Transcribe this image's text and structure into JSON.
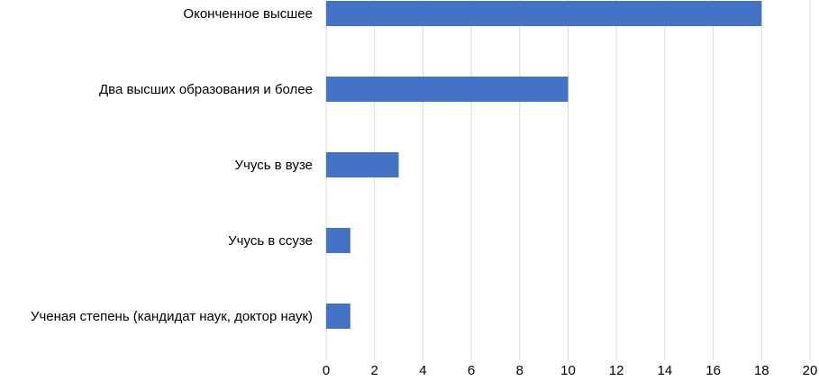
{
  "chart_data": {
    "type": "bar",
    "orientation": "horizontal",
    "categories": [
      "Оконченное высшее",
      "Два высших образования и более",
      "Учусь в вузе",
      "Учусь в ссузе",
      "Ученая степень (кандидат наук, доктор наук)"
    ],
    "values": [
      18,
      10,
      3,
      1,
      1
    ],
    "title": "",
    "xlabel": "",
    "ylabel": "",
    "xlim": [
      0,
      20
    ],
    "xticks": [
      0,
      2,
      4,
      6,
      8,
      10,
      12,
      14,
      16,
      18,
      20
    ],
    "xtick_labels": [
      "0",
      "2",
      "4",
      "6",
      "8",
      "10",
      "12",
      "14",
      "16",
      "18",
      "20"
    ],
    "grid": "vertical",
    "legend": "none",
    "bar_color": "#4472C4",
    "grid_color": "#D9D9D9"
  }
}
